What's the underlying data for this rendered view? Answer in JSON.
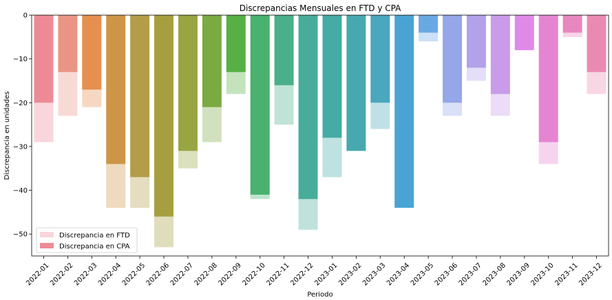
{
  "chart_data": {
    "type": "bar",
    "title": "Discrepancias Mensuales en FTD y CPA",
    "xlabel": "Periodo",
    "ylabel": "Discrepancia en unidades",
    "ylim": [
      -55,
      0
    ],
    "yticks": [
      0,
      -10,
      -20,
      -30,
      -40,
      -50
    ],
    "legend_position": "lower-left",
    "categories": [
      "2022-01",
      "2022-02",
      "2022-03",
      "2022-04",
      "2022-05",
      "2022-06",
      "2022-07",
      "2022-08",
      "2022-09",
      "2022-10",
      "2022-11",
      "2022-12",
      "2023-01",
      "2023-02",
      "2023-03",
      "2023-04",
      "2023-05",
      "2023-06",
      "2023-07",
      "2023-08",
      "2023-09",
      "2023-10",
      "2023-11",
      "2023-12"
    ],
    "colors": [
      "#ee8a97",
      "#ea9583",
      "#e5904f",
      "#ce9547",
      "#b39d49",
      "#a69f3f",
      "#98a542",
      "#7aaa42",
      "#56b043",
      "#48b26e",
      "#4aaf8b",
      "#47ad9a",
      "#46aba4",
      "#47a9af",
      "#4aa7bd",
      "#4aa4d3",
      "#6aa8e3",
      "#95a6e9",
      "#b3a1ea",
      "#c99be9",
      "#e08ae8",
      "#e585d1",
      "#e986c0",
      "#eb8ab0"
    ],
    "series": [
      {
        "name": "Discrepancia en FTD",
        "values": [
          -29,
          -23,
          -21,
          -44,
          -44,
          -53,
          -35,
          -29,
          -18,
          -42,
          -25,
          -49,
          -37,
          -31,
          -26,
          -44,
          -6,
          -23,
          -15,
          -23,
          -8,
          -34,
          -5,
          -18
        ]
      },
      {
        "name": "Discrepancia en CPA",
        "values": [
          -20,
          -13,
          -17,
          -34,
          -37,
          -46,
          -31,
          -21,
          -13,
          -41,
          -16,
          -42,
          -28,
          -31,
          -20,
          -44,
          -4,
          -20,
          -12,
          -18,
          -8,
          -29,
          -4,
          -13
        ]
      }
    ]
  }
}
